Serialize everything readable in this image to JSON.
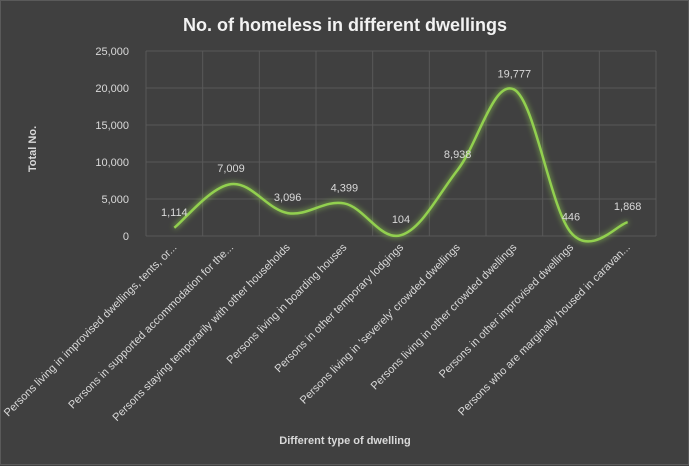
{
  "chart_data": {
    "type": "line",
    "title": "No. of homeless in different dwellings",
    "xlabel": "Different type of dwelling",
    "ylabel": "Total No.",
    "ylim": [
      0,
      25000
    ],
    "yticks": [
      "0",
      "5,000",
      "10,000",
      "15,000",
      "20,000",
      "25,000"
    ],
    "grid": true,
    "legend": "none",
    "line_color": "#92d050",
    "categories": [
      "Persons living in improvised dwellings, tents, or...",
      "Persons in supported accommodation for the...",
      "Persons staying temporarily with other households",
      "Persons living in boarding houses",
      "Persons in other temporary lodgings",
      "Persons living in 'severely' crowded dwellings",
      "Persons living in other crowded dwellings",
      "Persons in other improvised dwellings",
      "Persons who are marginally housed in caravan..."
    ],
    "values": [
      1114,
      7009,
      3096,
      4399,
      104,
      8938,
      19777,
      446,
      1868
    ],
    "value_labels": [
      "1,114",
      "7,009",
      "3,096",
      "4,399",
      "104",
      "8,938",
      "19,777",
      "446",
      "1,868"
    ]
  }
}
